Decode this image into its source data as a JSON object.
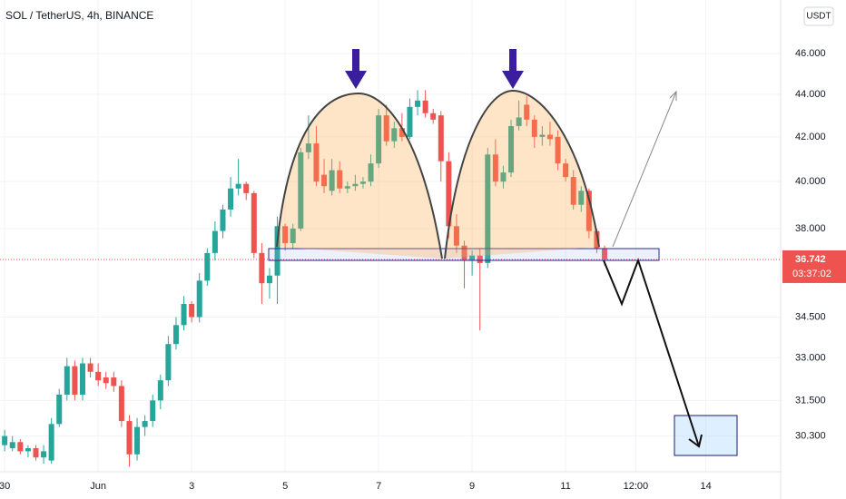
{
  "chart_data": {
    "type": "candlestick",
    "title": "SOL / TetherUS, 4h, BINANCE",
    "currency": "USDT",
    "countdown": "03:37:02",
    "up_color": "#26a69a",
    "down_color": "#ef5350",
    "log_scale": true,
    "grid": true,
    "x": [
      0,
      1,
      2,
      3,
      4,
      5,
      6,
      7,
      8,
      9,
      10,
      11,
      12,
      13,
      14,
      15,
      16,
      17,
      18,
      19,
      20,
      21,
      22,
      23,
      24,
      25,
      26,
      27,
      28,
      29,
      30,
      31,
      32,
      33,
      34,
      35,
      36,
      37,
      38,
      39,
      40,
      41,
      42,
      43,
      44,
      45,
      46,
      47,
      48,
      49,
      50,
      51,
      52,
      53,
      54,
      55,
      56,
      57,
      58,
      59,
      60,
      61,
      62,
      63,
      64,
      65,
      66,
      67,
      68,
      69,
      70,
      71,
      72,
      73,
      74,
      75,
      76,
      77
    ],
    "open": [
      30.0,
      29.9,
      30.1,
      29.8,
      29.9,
      29.6,
      29.5,
      30.7,
      31.7,
      32.7,
      31.7,
      32.8,
      32.5,
      32.3,
      32.3,
      32.0,
      30.8,
      29.7,
      30.6,
      30.8,
      31.5,
      32.2,
      33.5,
      34.2,
      35.0,
      34.5,
      35.9,
      37.0,
      37.9,
      38.8,
      39.7,
      39.9,
      39.5,
      37.0,
      35.8,
      36.1,
      38.1,
      37.4,
      38.0,
      41.3,
      41.7,
      40.3,
      39.6,
      40.5,
      39.7,
      39.8,
      39.9,
      40.0,
      40.8,
      43.0,
      41.8,
      42.4,
      42.0,
      43.4,
      43.7,
      43.1,
      43.0,
      40.9,
      38.1,
      37.3,
      36.7,
      36.9,
      36.6,
      41.2,
      40.0,
      40.4,
      42.5,
      43.5,
      42.8,
      42.0,
      42.1,
      42.0,
      40.8,
      40.2,
      39.0,
      39.6,
      37.9,
      37.2
    ],
    "high": [
      30.5,
      30.3,
      30.2,
      30.0,
      30.0,
      30.0,
      30.9,
      31.9,
      33.0,
      32.9,
      33.0,
      33.0,
      32.8,
      32.5,
      32.5,
      32.2,
      31.0,
      30.9,
      31.0,
      31.7,
      32.4,
      33.8,
      34.5,
      35.3,
      35.1,
      36.2,
      37.2,
      38.3,
      39.0,
      40.2,
      41.0,
      40.0,
      39.6,
      37.4,
      36.4,
      38.5,
      38.2,
      38.2,
      41.5,
      43.0,
      42.5,
      41.0,
      41.0,
      40.9,
      40.0,
      40.3,
      40.2,
      41.2,
      43.3,
      43.5,
      42.7,
      43.1,
      43.8,
      44.2,
      44.2,
      43.3,
      43.2,
      41.3,
      38.6,
      37.5,
      37.1,
      37.2,
      41.5,
      41.9,
      40.7,
      42.8,
      43.7,
      43.9,
      43.0,
      42.5,
      42.7,
      42.3,
      41.0,
      40.5,
      39.8,
      39.7,
      38.0,
      37.3
    ],
    "low": [
      29.8,
      29.8,
      29.7,
      29.6,
      29.5,
      29.4,
      29.4,
      30.6,
      31.5,
      31.5,
      31.5,
      32.3,
      32.0,
      31.9,
      31.8,
      30.6,
      29.3,
      29.5,
      30.3,
      30.6,
      31.2,
      32.0,
      33.3,
      34.0,
      34.3,
      34.3,
      35.7,
      36.7,
      37.6,
      38.5,
      39.4,
      39.2,
      36.8,
      35.0,
      35.2,
      35.0,
      37.1,
      37.2,
      37.9,
      41.0,
      39.8,
      39.5,
      39.4,
      39.5,
      39.5,
      39.6,
      39.7,
      39.8,
      40.6,
      41.6,
      41.5,
      41.8,
      41.9,
      43.0,
      42.9,
      42.6,
      40.0,
      37.6,
      37.0,
      35.6,
      36.1,
      34.0,
      36.4,
      39.8,
      39.7,
      40.2,
      42.3,
      42.5,
      41.5,
      41.6,
      41.6,
      40.5,
      40.0,
      38.8,
      38.7,
      37.6,
      37.0,
      36.5
    ],
    "close": [
      30.3,
      30.1,
      29.8,
      29.9,
      29.6,
      29.8,
      30.7,
      31.7,
      32.7,
      31.7,
      32.8,
      32.5,
      32.2,
      32.1,
      32.0,
      30.8,
      29.7,
      30.6,
      30.8,
      31.5,
      32.2,
      33.5,
      34.2,
      35.0,
      34.5,
      35.9,
      37.0,
      37.9,
      38.8,
      39.7,
      39.9,
      39.5,
      37.0,
      35.8,
      36.1,
      38.1,
      37.4,
      38.0,
      41.3,
      41.7,
      40.0,
      39.8,
      40.5,
      39.7,
      39.8,
      39.9,
      40.0,
      40.8,
      43.0,
      41.8,
      42.4,
      42.0,
      43.4,
      43.7,
      43.1,
      42.8,
      40.9,
      38.1,
      37.3,
      36.7,
      36.9,
      36.6,
      41.2,
      40.0,
      40.4,
      42.5,
      42.9,
      42.8,
      42.0,
      42.1,
      41.9,
      40.8,
      40.2,
      39.0,
      39.6,
      37.9,
      37.2,
      36.742
    ],
    "xlim": [
      -0.6,
      99.6
    ],
    "xticks": [
      {
        "value": 0,
        "label": "30"
      },
      {
        "value": 12,
        "label": "Jun"
      },
      {
        "value": 24,
        "label": "3"
      },
      {
        "value": 36,
        "label": "5"
      },
      {
        "value": 48,
        "label": "7"
      },
      {
        "value": 60,
        "label": "9"
      },
      {
        "value": 72,
        "label": "11"
      },
      {
        "value": 81,
        "label": "12:00"
      },
      {
        "value": 90,
        "label": "14"
      }
    ],
    "ylim": [
      29.14,
      48.77
    ],
    "yticks": [
      {
        "value": 30.3,
        "label": "30.300"
      },
      {
        "value": 31.5,
        "label": "31.500"
      },
      {
        "value": 33,
        "label": "33.000"
      },
      {
        "value": 34.5,
        "label": "34.500"
      },
      {
        "value": 38,
        "label": "38.000"
      },
      {
        "value": 40,
        "label": "40.000"
      },
      {
        "value": 42,
        "label": "42.000"
      },
      {
        "value": 44,
        "label": "44.000"
      },
      {
        "value": 46,
        "label": "46.000"
      }
    ]
  }
}
